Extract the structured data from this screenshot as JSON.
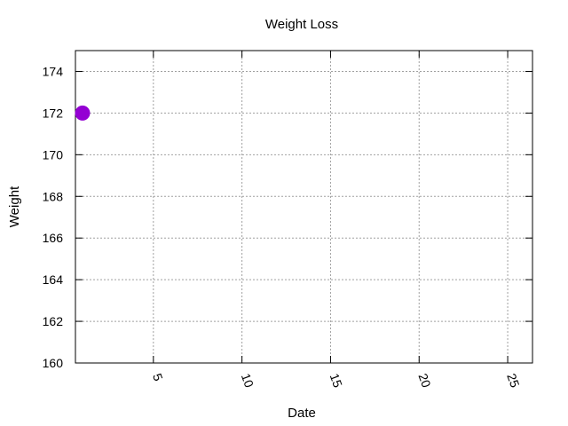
{
  "chart_data": {
    "type": "scatter",
    "title": "Weight Loss",
    "xlabel": "Date",
    "ylabel": "Weight",
    "xlim": [
      0.6,
      26.4
    ],
    "ylim": [
      160,
      175
    ],
    "xticks": [
      5,
      10,
      15,
      20,
      25
    ],
    "yticks": [
      160,
      162,
      164,
      166,
      168,
      170,
      172,
      174
    ],
    "grid": true,
    "x_tick_label_rotation": "rotated",
    "series": [
      {
        "points": [
          {
            "x": 1,
            "y": 172
          }
        ],
        "color": "#9400d3",
        "marker": "circle"
      }
    ]
  }
}
